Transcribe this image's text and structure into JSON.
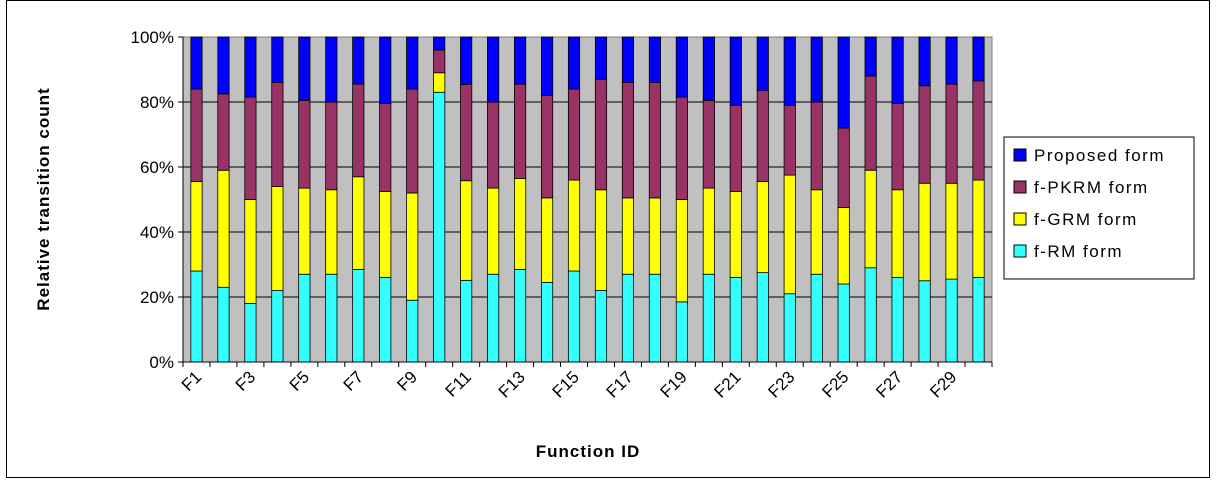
{
  "chart_data": {
    "type": "bar",
    "stacked": true,
    "percent_stacked": true,
    "xlabel": "Function ID",
    "ylabel": "Relative transition count",
    "ylim": [
      0,
      100
    ],
    "yticks": [
      "0%",
      "20%",
      "40%",
      "60%",
      "80%",
      "100%"
    ],
    "grid": true,
    "legend_position": "right",
    "categories": [
      "F1",
      "F2",
      "F3",
      "F4",
      "F5",
      "F6",
      "F7",
      "F8",
      "F9",
      "F10",
      "F11",
      "F12",
      "F13",
      "F14",
      "F15",
      "F16",
      "F17",
      "F18",
      "F19",
      "F20",
      "F21",
      "F22",
      "F23",
      "F24",
      "F25",
      "F26",
      "F27",
      "F28",
      "F29",
      "F30"
    ],
    "x_tick_labels": [
      "F1",
      "",
      "F3",
      "",
      "F5",
      "",
      "F7",
      "",
      "F9",
      "",
      "F11",
      "",
      "F13",
      "",
      "F15",
      "",
      "F17",
      "",
      "F19",
      "",
      "F21",
      "",
      "F23",
      "",
      "F25",
      "",
      "F27",
      "",
      "F29",
      ""
    ],
    "series": [
      {
        "name": "f-RM form",
        "color": "#33FFFF",
        "values": [
          28,
          23,
          18,
          22,
          27,
          27,
          28.5,
          26,
          19,
          83,
          25,
          27,
          28.5,
          24.5,
          28,
          22,
          27,
          27,
          18.5,
          27,
          26,
          27.5,
          21,
          27,
          24,
          29,
          26,
          25,
          25.5,
          26
        ]
      },
      {
        "name": "f-GRM form",
        "color": "#FFFF00",
        "values": [
          27.5,
          36,
          32,
          32,
          26.5,
          26,
          28.5,
          26.5,
          33,
          6,
          30.5,
          26.5,
          28,
          26,
          28,
          31,
          23.5,
          23.5,
          31.5,
          26.5,
          26.5,
          28,
          36.5,
          26,
          23.5,
          30,
          27,
          30,
          29.5,
          30
        ]
      },
      {
        "name": "f-PKRM form",
        "color": "#993366",
        "values": [
          28.5,
          23.5,
          31.5,
          32,
          27,
          27,
          28.5,
          27,
          32,
          7,
          29.5,
          26.5,
          29,
          31.5,
          28,
          34,
          35.5,
          35.5,
          31.5,
          27,
          26.5,
          28,
          21.5,
          27,
          24.5,
          29,
          26.5,
          30,
          30.5,
          30.5
        ]
      },
      {
        "name": "Proposed form",
        "color": "#0000FF",
        "values": [
          16,
          17.5,
          18.5,
          14,
          19.5,
          20,
          14.5,
          20.5,
          16,
          4,
          14.5,
          20,
          14.5,
          18,
          16,
          13,
          14,
          14,
          18.5,
          19.5,
          21,
          16.5,
          21,
          20,
          28,
          12,
          20.5,
          15,
          14.5,
          13.5
        ]
      }
    ],
    "legend_order": [
      "Proposed form",
      "f-PKRM form",
      "f-GRM form",
      "f-RM form"
    ]
  }
}
